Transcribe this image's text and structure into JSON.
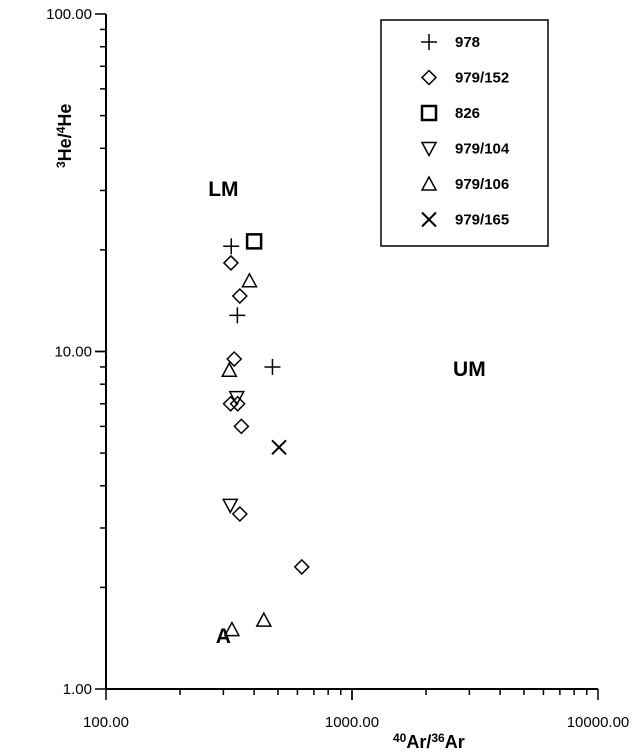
{
  "chart_data": {
    "type": "scatter",
    "title": "",
    "x_scale": "log",
    "y_scale": "log",
    "xlim": [
      100,
      10000
    ],
    "ylim": [
      1,
      100
    ],
    "grid": false,
    "legend_position": "top-right",
    "xlabel": {
      "sup1": "40",
      "base1": "Ar/",
      "sup2": "36",
      "base2": "Ar"
    },
    "ylabel": {
      "sup1": "3",
      "base1": "He/",
      "sup2": "4",
      "base2": "He"
    },
    "x_tick_labels": [
      {
        "value": 100,
        "label": "100.00"
      },
      {
        "value": 1000,
        "label": "1000.00"
      },
      {
        "value": 10000,
        "label": "10000.00"
      }
    ],
    "y_tick_labels": [
      {
        "value": 1,
        "label": "1.00"
      },
      {
        "value": 10,
        "label": "10.00"
      },
      {
        "value": 100,
        "label": "100.00"
      }
    ],
    "region_labels": [
      {
        "text": "LM",
        "x": 300,
        "y": 30
      },
      {
        "text": "UM",
        "x": 3000,
        "y": 8.8
      },
      {
        "text": "A",
        "x": 300,
        "y": 1.42
      }
    ],
    "series": [
      {
        "name": "978",
        "marker": "plus",
        "points": [
          [
            323,
            20.5
          ],
          [
            342,
            12.8
          ],
          [
            475,
            9.0
          ]
        ]
      },
      {
        "name": "979/152",
        "marker": "diamond",
        "points": [
          [
            322,
            18.3
          ],
          [
            350,
            14.6
          ],
          [
            332,
            9.5
          ],
          [
            321,
            7.0
          ],
          [
            343,
            7.0
          ],
          [
            355,
            6.0
          ],
          [
            350,
            3.3
          ],
          [
            625,
            2.3
          ]
        ]
      },
      {
        "name": "826",
        "marker": "square",
        "points": [
          [
            400,
            21.2
          ]
        ]
      },
      {
        "name": "979/104",
        "marker": "triangle-down",
        "points": [
          [
            340,
            7.3
          ],
          [
            320,
            3.5
          ]
        ]
      },
      {
        "name": "979/106",
        "marker": "triangle-up",
        "points": [
          [
            383,
            16.2
          ],
          [
            317,
            8.8
          ],
          [
            325,
            1.5
          ],
          [
            438,
            1.6
          ]
        ]
      },
      {
        "name": "979/165",
        "marker": "x",
        "points": [
          [
            505,
            5.2
          ]
        ]
      }
    ]
  }
}
